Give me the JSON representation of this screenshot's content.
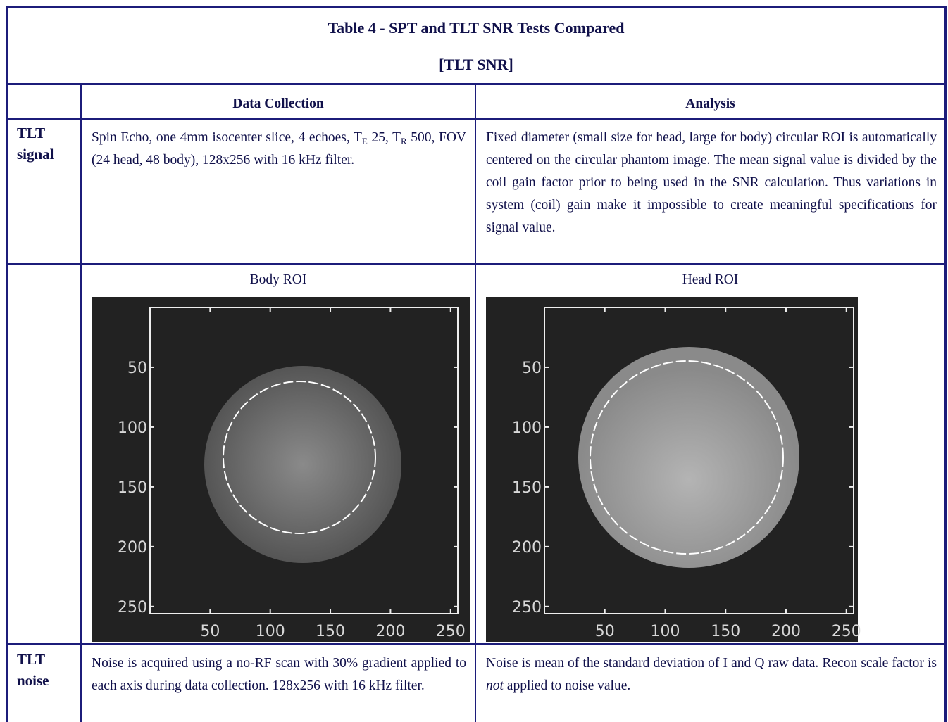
{
  "title": "Table 4 - SPT and TLT SNR Tests Compared",
  "subtitle": "[TLT SNR]",
  "columns": [
    "Data Collection",
    "Analysis"
  ],
  "rows": [
    {
      "label": [
        "TLT",
        "signal"
      ],
      "collection": [
        "Spin Echo, one 4mm isocenter slice, 4 echoes, T",
        "E",
        " 25, T",
        "R",
        " 500, FOV (24 head, 48 body), 128x256 with 16 kHz filter."
      ],
      "analysis": "Fixed diameter (small size for head, large for body) circular ROI is automatically centered on the circular phantom image. The mean signal value is divided by the coil gain factor prior to being used in the SNR calculation. Thus variations in system (coil) gain make it impossible to create meaningful specifications for signal value."
    },
    {
      "images": [
        {
          "caption": "Body ROI",
          "xlim": [
            0,
            256
          ],
          "ylim": [
            0,
            256
          ],
          "xticks": [
            50,
            100,
            150,
            200,
            250
          ],
          "yticks": [
            50,
            100,
            150,
            200,
            250
          ]
        },
        {
          "caption": "Head ROI",
          "xlim": [
            0,
            256
          ],
          "ylim": [
            0,
            256
          ],
          "xticks": [
            50,
            100,
            150,
            200,
            250
          ],
          "yticks": [
            50,
            100,
            150,
            200,
            250
          ]
        }
      ]
    },
    {
      "label": [
        "TLT",
        "noise"
      ],
      "collection": "Noise is acquired using a no-RF scan with 30% gradient applied to each axis during data collection. 128x256 with 16 kHz filter.",
      "analysis": [
        "Noise is mean of the standard deviation of I and Q raw data. Recon scale factor is ",
        "not",
        " applied to noise value."
      ]
    }
  ]
}
